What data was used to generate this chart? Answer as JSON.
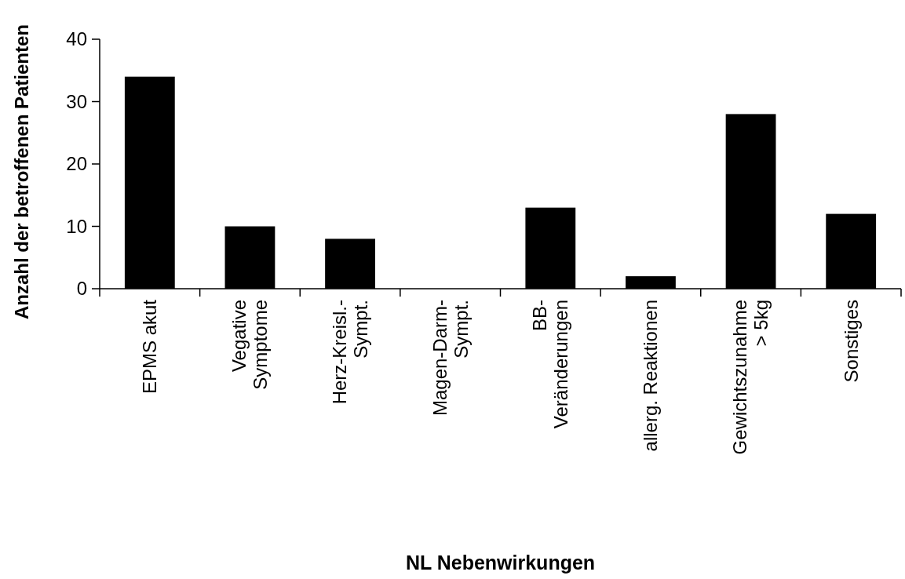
{
  "chart_data": {
    "type": "bar",
    "xlabel": "NL Nebenwirkungen",
    "ylabel": "Anzahl der betroffenen Patienten",
    "categories": [
      "EPMS akut",
      "Vegative\nSymptome",
      "Herz-Kreisl.-\nSympt.",
      "Magen-Darm-\nSympt.",
      "BB-\nVeränderungen",
      "allerg. Reaktionen",
      "Gewichtszunahme\n> 5kg",
      "Sonstiges"
    ],
    "values": [
      34,
      10,
      8,
      0,
      13,
      2,
      28,
      12
    ],
    "color": "#000000",
    "ylim": [
      0,
      40
    ],
    "yticks": [
      0,
      10,
      20,
      30,
      40
    ],
    "grid": false
  }
}
